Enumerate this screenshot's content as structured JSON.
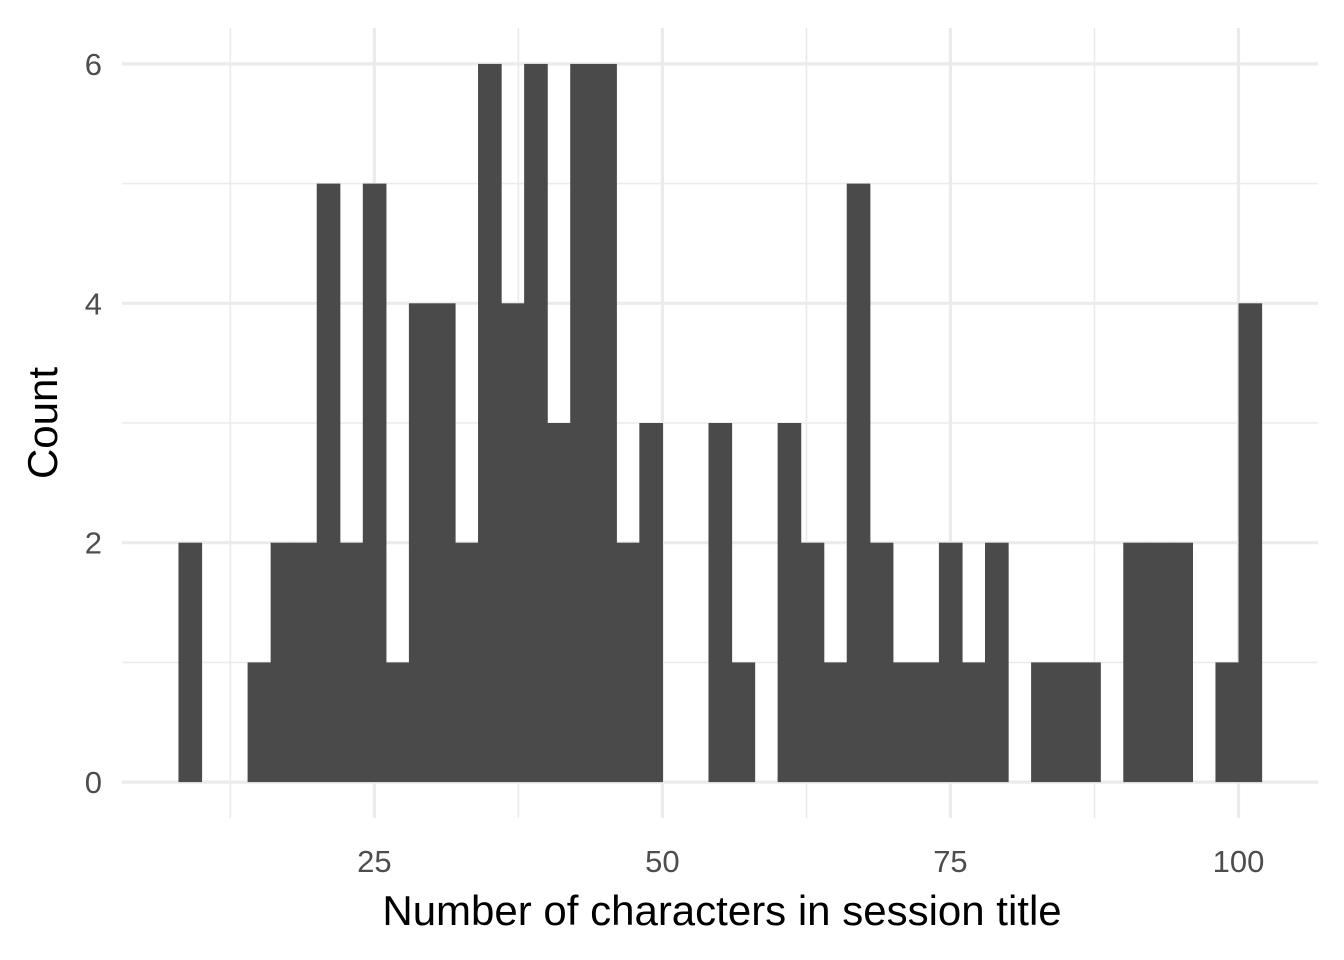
{
  "chart_data": {
    "type": "bar",
    "subtype": "histogram",
    "xlabel": "Number of characters in session title",
    "ylabel": "Count",
    "bin_width": 2,
    "bins": [
      {
        "x": 9,
        "count": 2
      },
      {
        "x": 15,
        "count": 1
      },
      {
        "x": 17,
        "count": 2
      },
      {
        "x": 19,
        "count": 2
      },
      {
        "x": 21,
        "count": 5
      },
      {
        "x": 23,
        "count": 2
      },
      {
        "x": 25,
        "count": 5
      },
      {
        "x": 27,
        "count": 1
      },
      {
        "x": 29,
        "count": 4
      },
      {
        "x": 31,
        "count": 4
      },
      {
        "x": 33,
        "count": 2
      },
      {
        "x": 35,
        "count": 6
      },
      {
        "x": 37,
        "count": 4
      },
      {
        "x": 39,
        "count": 6
      },
      {
        "x": 41,
        "count": 3
      },
      {
        "x": 43,
        "count": 6
      },
      {
        "x": 45,
        "count": 6
      },
      {
        "x": 47,
        "count": 2
      },
      {
        "x": 49,
        "count": 3
      },
      {
        "x": 55,
        "count": 3
      },
      {
        "x": 57,
        "count": 1
      },
      {
        "x": 61,
        "count": 3
      },
      {
        "x": 63,
        "count": 2
      },
      {
        "x": 65,
        "count": 1
      },
      {
        "x": 67,
        "count": 5
      },
      {
        "x": 69,
        "count": 2
      },
      {
        "x": 71,
        "count": 1
      },
      {
        "x": 73,
        "count": 1
      },
      {
        "x": 75,
        "count": 2
      },
      {
        "x": 77,
        "count": 1
      },
      {
        "x": 79,
        "count": 2
      },
      {
        "x": 83,
        "count": 1
      },
      {
        "x": 85,
        "count": 1
      },
      {
        "x": 87,
        "count": 1
      },
      {
        "x": 91,
        "count": 2
      },
      {
        "x": 93,
        "count": 2
      },
      {
        "x": 95,
        "count": 2
      },
      {
        "x": 99,
        "count": 1
      },
      {
        "x": 101,
        "count": 4
      }
    ],
    "xlim": [
      3.1,
      106.9
    ],
    "ylim": [
      -0.3,
      6.3
    ],
    "x_ticks": [
      25,
      50,
      75,
      100
    ],
    "x_tick_labels": [
      "25",
      "50",
      "75",
      "100"
    ],
    "y_ticks": [
      0,
      2,
      4,
      6
    ],
    "y_tick_labels": [
      "0",
      "2",
      "4",
      "6"
    ],
    "grid": true,
    "legend": "none",
    "colors": {
      "bar": "#4a4a4a",
      "grid": "#ebebeb",
      "tick_text": "#4d4d4d",
      "title_text": "#000000",
      "background": "#ffffff"
    }
  }
}
